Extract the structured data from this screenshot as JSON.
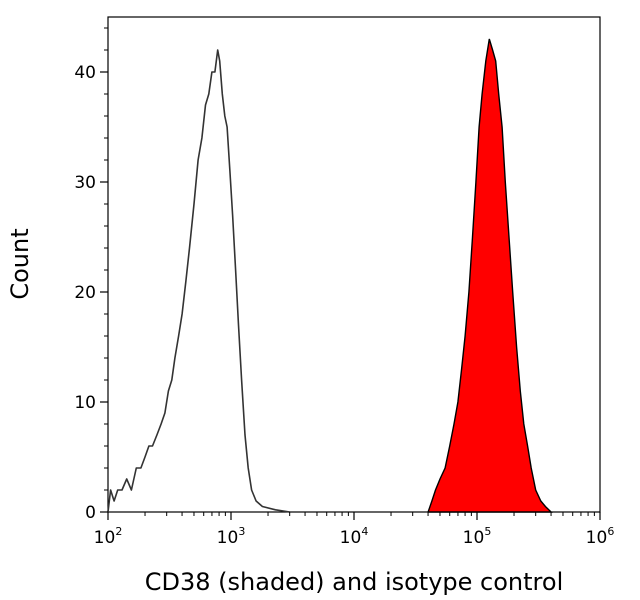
{
  "chart_data": {
    "type": "histogram",
    "title": "",
    "xlabel": "CD38 (shaded) and isotype control",
    "ylabel": "Count",
    "x_scale": "log10",
    "xlim": [
      100,
      1000000
    ],
    "ylim": [
      0,
      45
    ],
    "grid": false,
    "legend": "none",
    "x_ticks": [
      {
        "value": 100,
        "base": "10",
        "exp": "2"
      },
      {
        "value": 1000,
        "base": "10",
        "exp": "3"
      },
      {
        "value": 10000,
        "base": "10",
        "exp": "4"
      },
      {
        "value": 100000,
        "base": "10",
        "exp": "5"
      },
      {
        "value": 1000000,
        "base": "10",
        "exp": "6"
      }
    ],
    "y_ticks": [
      {
        "value": 0,
        "label": "0"
      },
      {
        "value": 10,
        "label": "10"
      },
      {
        "value": 20,
        "label": "20"
      },
      {
        "value": 30,
        "label": "30"
      },
      {
        "value": 40,
        "label": "40"
      }
    ],
    "series": [
      {
        "role": "isotype control (outline)",
        "color": "#333333",
        "filled": false,
        "points": [
          [
            100,
            0
          ],
          [
            105,
            2
          ],
          [
            112,
            1
          ],
          [
            120,
            2
          ],
          [
            130,
            2
          ],
          [
            142,
            3
          ],
          [
            155,
            2
          ],
          [
            170,
            4
          ],
          [
            185,
            4
          ],
          [
            200,
            5
          ],
          [
            215,
            6
          ],
          [
            230,
            6
          ],
          [
            250,
            7
          ],
          [
            270,
            8
          ],
          [
            290,
            9
          ],
          [
            310,
            11
          ],
          [
            330,
            12
          ],
          [
            350,
            14
          ],
          [
            375,
            16
          ],
          [
            400,
            18
          ],
          [
            430,
            21
          ],
          [
            460,
            24
          ],
          [
            500,
            28
          ],
          [
            540,
            32
          ],
          [
            580,
            34
          ],
          [
            620,
            37
          ],
          [
            660,
            38
          ],
          [
            700,
            40
          ],
          [
            740,
            40
          ],
          [
            780,
            42
          ],
          [
            810,
            41
          ],
          [
            850,
            38
          ],
          [
            890,
            36
          ],
          [
            930,
            35
          ],
          [
            980,
            31
          ],
          [
            1030,
            27
          ],
          [
            1090,
            22
          ],
          [
            1150,
            17
          ],
          [
            1220,
            12
          ],
          [
            1300,
            7
          ],
          [
            1380,
            4
          ],
          [
            1470,
            2
          ],
          [
            1600,
            1
          ],
          [
            1800,
            0.5
          ],
          [
            2300,
            0.2
          ],
          [
            3000,
            0
          ]
        ]
      },
      {
        "role": "CD38 (shaded)",
        "color": "#ff0000",
        "outline": "#000000",
        "filled": true,
        "points": [
          [
            40000,
            0
          ],
          [
            43000,
            1
          ],
          [
            46000,
            2
          ],
          [
            50000,
            3
          ],
          [
            55000,
            4
          ],
          [
            60000,
            6
          ],
          [
            65000,
            8
          ],
          [
            70000,
            10
          ],
          [
            75000,
            13
          ],
          [
            80000,
            16
          ],
          [
            86000,
            20
          ],
          [
            92000,
            25
          ],
          [
            98000,
            30
          ],
          [
            104000,
            35
          ],
          [
            110000,
            38
          ],
          [
            118000,
            41
          ],
          [
            126000,
            43
          ],
          [
            134000,
            42
          ],
          [
            142000,
            41
          ],
          [
            150000,
            38
          ],
          [
            160000,
            35
          ],
          [
            170000,
            30
          ],
          [
            182000,
            25
          ],
          [
            195000,
            20
          ],
          [
            210000,
            15
          ],
          [
            225000,
            11
          ],
          [
            240000,
            8
          ],
          [
            258000,
            6
          ],
          [
            276000,
            4
          ],
          [
            300000,
            2
          ],
          [
            330000,
            1
          ],
          [
            360000,
            0.5
          ],
          [
            400000,
            0
          ]
        ]
      }
    ]
  }
}
